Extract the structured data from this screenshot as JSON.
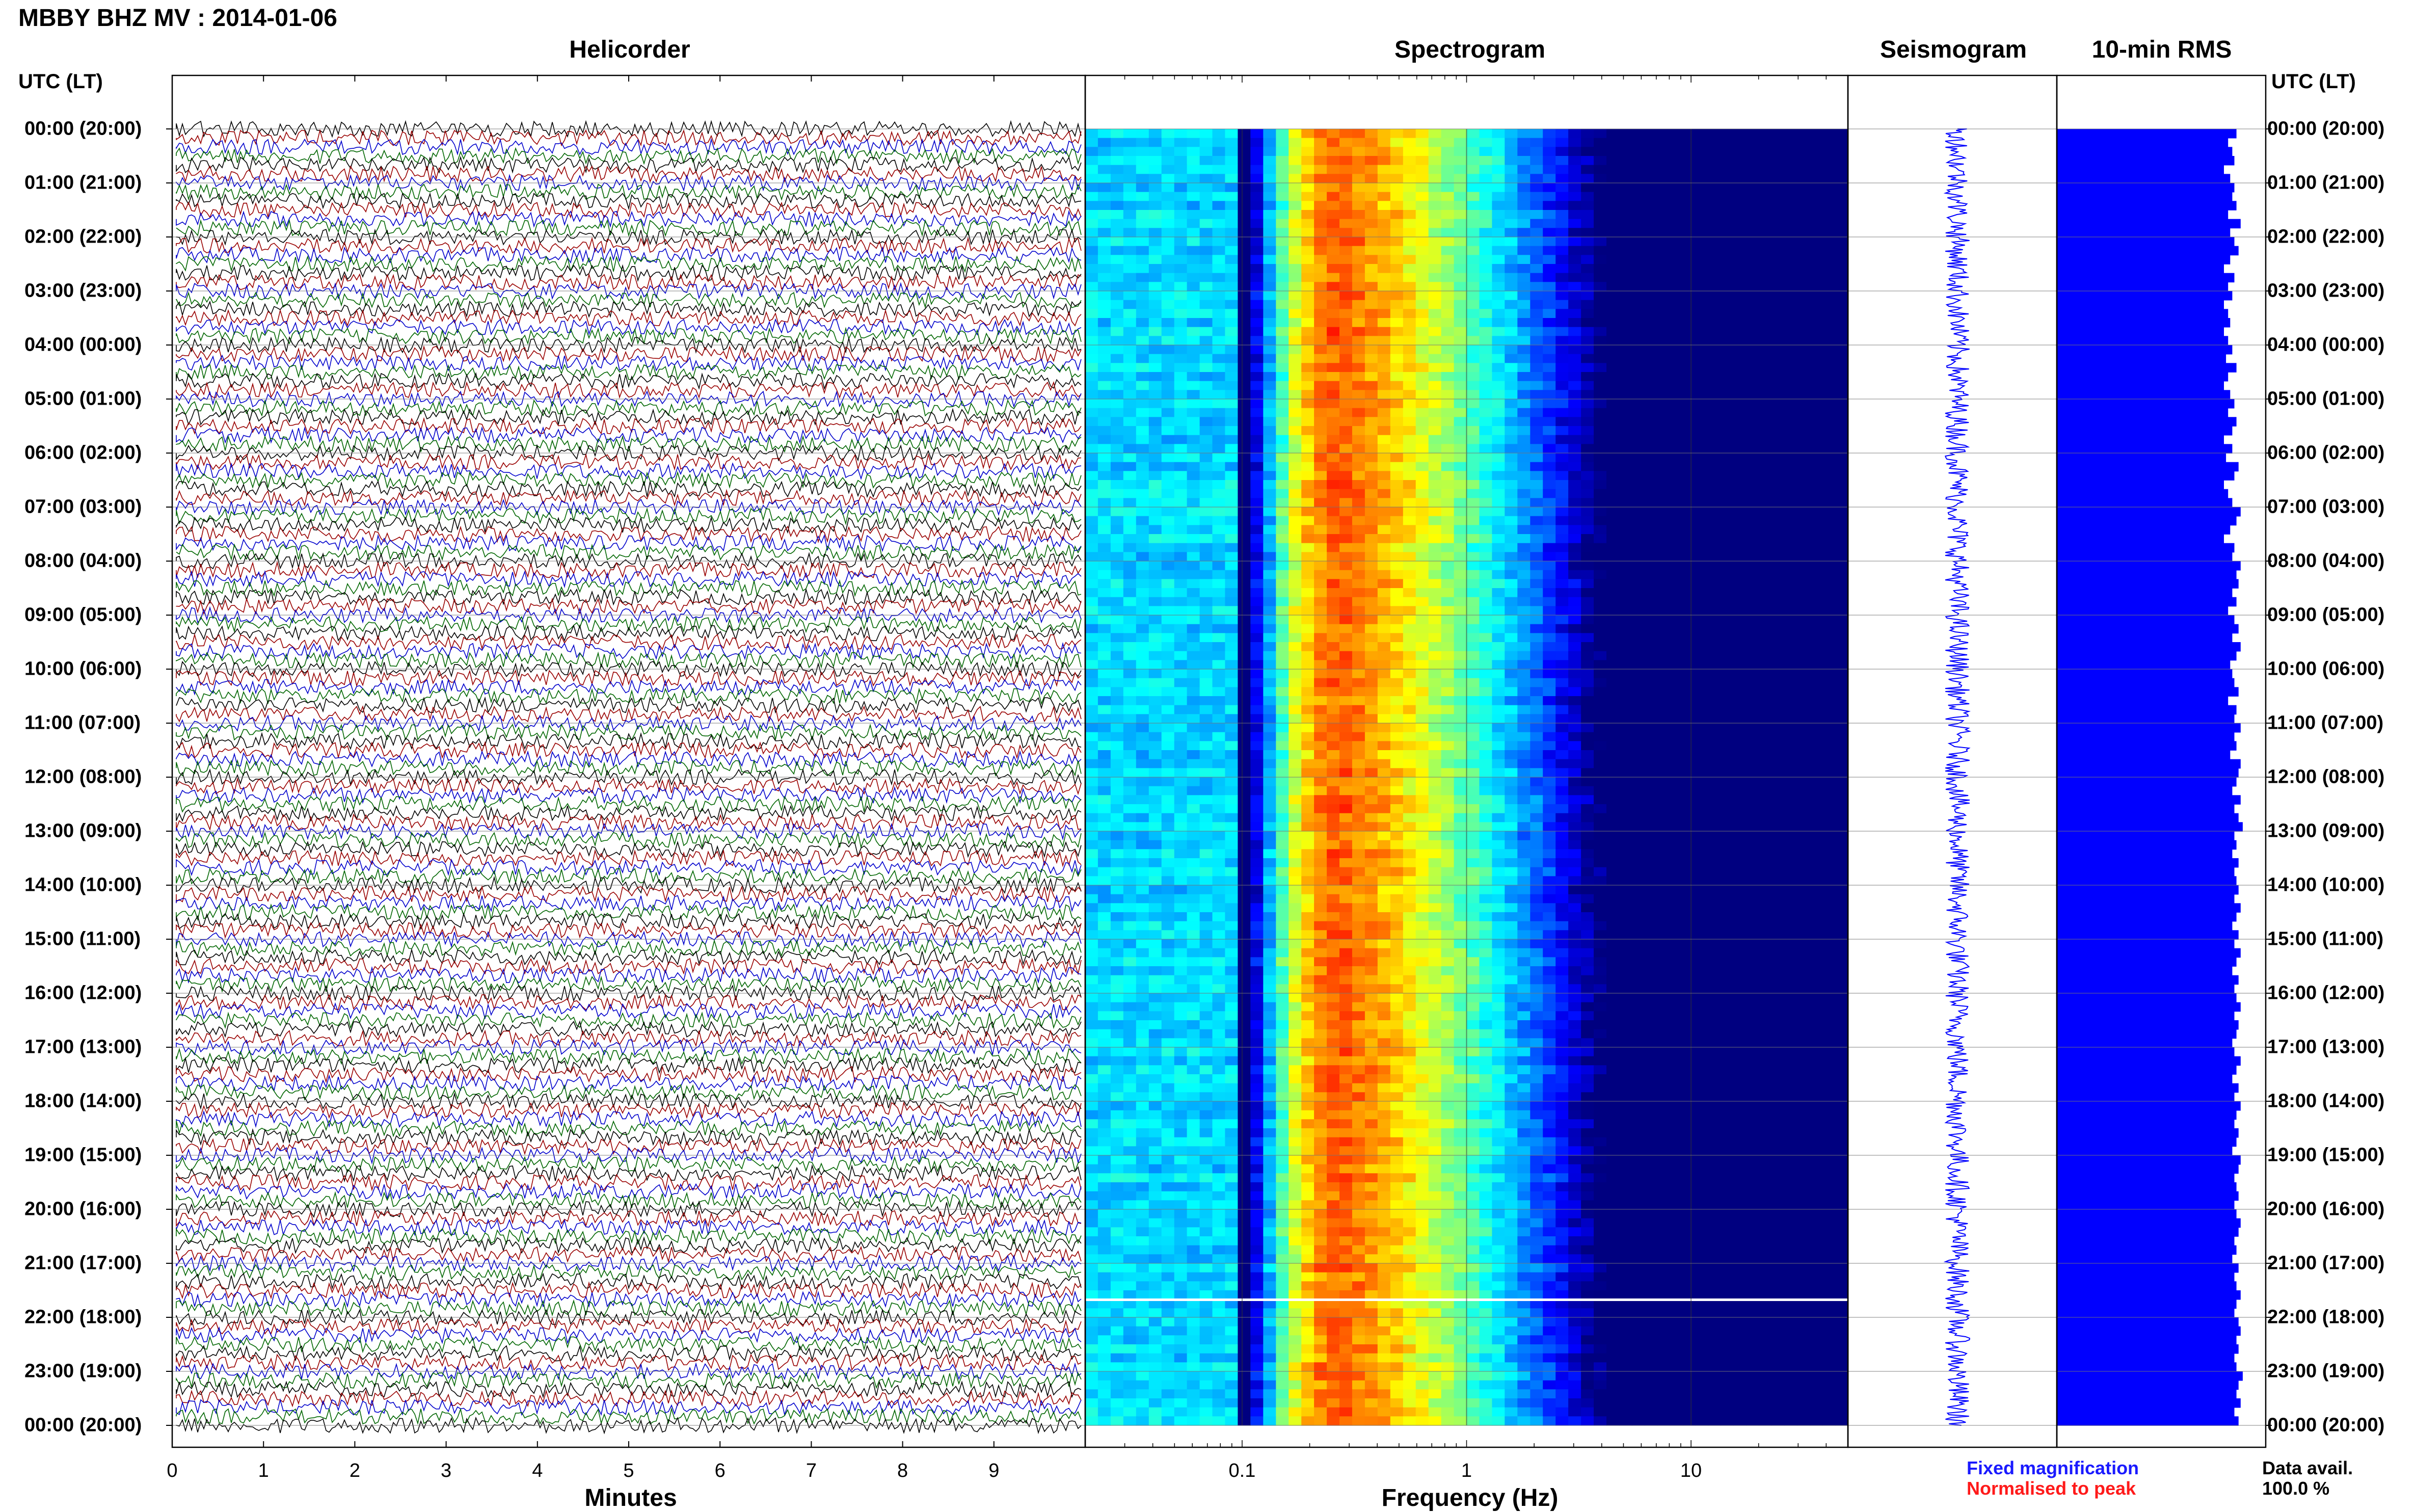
{
  "header": {
    "title": "MBBY BHZ MV : 2014-01-06"
  },
  "panels": {
    "helicorder": "Helicorder",
    "spectrogram": "Spectrogram",
    "seismogram": "Seismogram",
    "rms": "10-min RMS"
  },
  "axis": {
    "left_header": "UTC (LT)",
    "right_header": "UTC (LT)",
    "minutes_label": "Minutes",
    "frequency_label": "Frequency (Hz)"
  },
  "legend": {
    "fixed": "Fixed magnification",
    "normalised": "Normalised to peak",
    "fixed_color": "#1a1aff",
    "normalised_color": "#ff1a1a"
  },
  "data_availability": {
    "label": "Data avail.",
    "value": "100.0 %"
  },
  "chart_data": [
    {
      "type": "line",
      "name": "Helicorder",
      "xlabel": "Minutes",
      "x_ticks": [
        "0",
        "1",
        "2",
        "3",
        "4",
        "5",
        "6",
        "7",
        "8",
        "9"
      ],
      "xlim": [
        0,
        10
      ],
      "y_ticks": [
        "00:00 (20:00)",
        "01:00 (21:00)",
        "02:00 (22:00)",
        "03:00 (23:00)",
        "04:00 (00:00)",
        "05:00 (01:00)",
        "06:00 (02:00)",
        "07:00 (03:00)",
        "08:00 (04:00)",
        "09:00 (05:00)",
        "10:00 (06:00)",
        "11:00 (07:00)",
        "12:00 (08:00)",
        "13:00 (09:00)",
        "14:00 (10:00)",
        "15:00 (11:00)",
        "16:00 (12:00)",
        "17:00 (13:00)",
        "18:00 (14:00)",
        "19:00 (15:00)",
        "20:00 (16:00)",
        "21:00 (17:00)",
        "22:00 (18:00)",
        "23:00 (19:00)",
        "00:00 (20:00)"
      ],
      "trace_colors": [
        "#000000",
        "#990000",
        "#0000cc",
        "#006600"
      ],
      "traces_per_hour": 6
    },
    {
      "type": "heatmap",
      "name": "Spectrogram",
      "xlabel": "Frequency (Hz)",
      "x_scale": "log",
      "x_ticks": [
        "0.1",
        "1",
        "10"
      ],
      "xlim": [
        0.02,
        50
      ],
      "peak_frequency_band_hz": [
        0.15,
        0.5
      ],
      "colormap": "jet"
    },
    {
      "type": "line",
      "name": "Seismogram",
      "note_free": true
    },
    {
      "type": "bar",
      "name": "10-min RMS",
      "bar_color": "#0000ff",
      "relative_values": [
        0.86,
        0.82,
        0.84,
        0.85,
        0.8,
        0.83,
        0.85,
        0.84,
        0.86,
        0.82,
        0.88,
        0.83,
        0.85,
        0.87,
        0.83,
        0.8,
        0.85,
        0.82,
        0.84,
        0.8,
        0.82,
        0.83,
        0.8,
        0.82,
        0.84,
        0.81,
        0.86,
        0.82,
        0.8,
        0.83,
        0.85,
        0.82,
        0.86,
        0.84,
        0.8,
        0.84,
        0.81,
        0.87,
        0.85,
        0.8,
        0.82,
        0.84,
        0.88,
        0.86,
        0.83,
        0.8,
        0.85,
        0.84,
        0.88,
        0.86,
        0.87,
        0.84,
        0.86,
        0.82,
        0.85,
        0.87,
        0.84,
        0.88,
        0.86,
        0.83,
        0.84,
        0.85,
        0.87,
        0.82,
        0.86,
        0.85,
        0.88,
        0.85,
        0.86,
        0.83,
        0.88,
        0.87,
        0.86,
        0.84,
        0.88,
        0.85,
        0.87,
        0.89,
        0.85,
        0.86,
        0.84,
        0.87,
        0.85,
        0.86,
        0.87,
        0.85,
        0.88,
        0.86,
        0.84,
        0.87,
        0.85,
        0.88,
        0.86,
        0.84,
        0.87,
        0.85,
        0.86,
        0.88,
        0.85,
        0.87,
        0.86,
        0.84,
        0.85,
        0.88,
        0.86,
        0.84,
        0.87,
        0.85,
        0.88,
        0.86,
        0.85,
        0.87,
        0.86,
        0.84,
        0.88,
        0.87,
        0.85,
        0.86,
        0.87,
        0.85,
        0.86,
        0.88,
        0.87,
        0.85,
        0.86,
        0.84,
        0.87,
        0.85,
        0.86,
        0.88,
        0.86,
        0.85,
        0.87,
        0.88,
        0.86,
        0.87,
        0.85,
        0.86,
        0.89,
        0.87,
        0.86,
        0.88,
        0.85,
        0.87
      ]
    }
  ]
}
